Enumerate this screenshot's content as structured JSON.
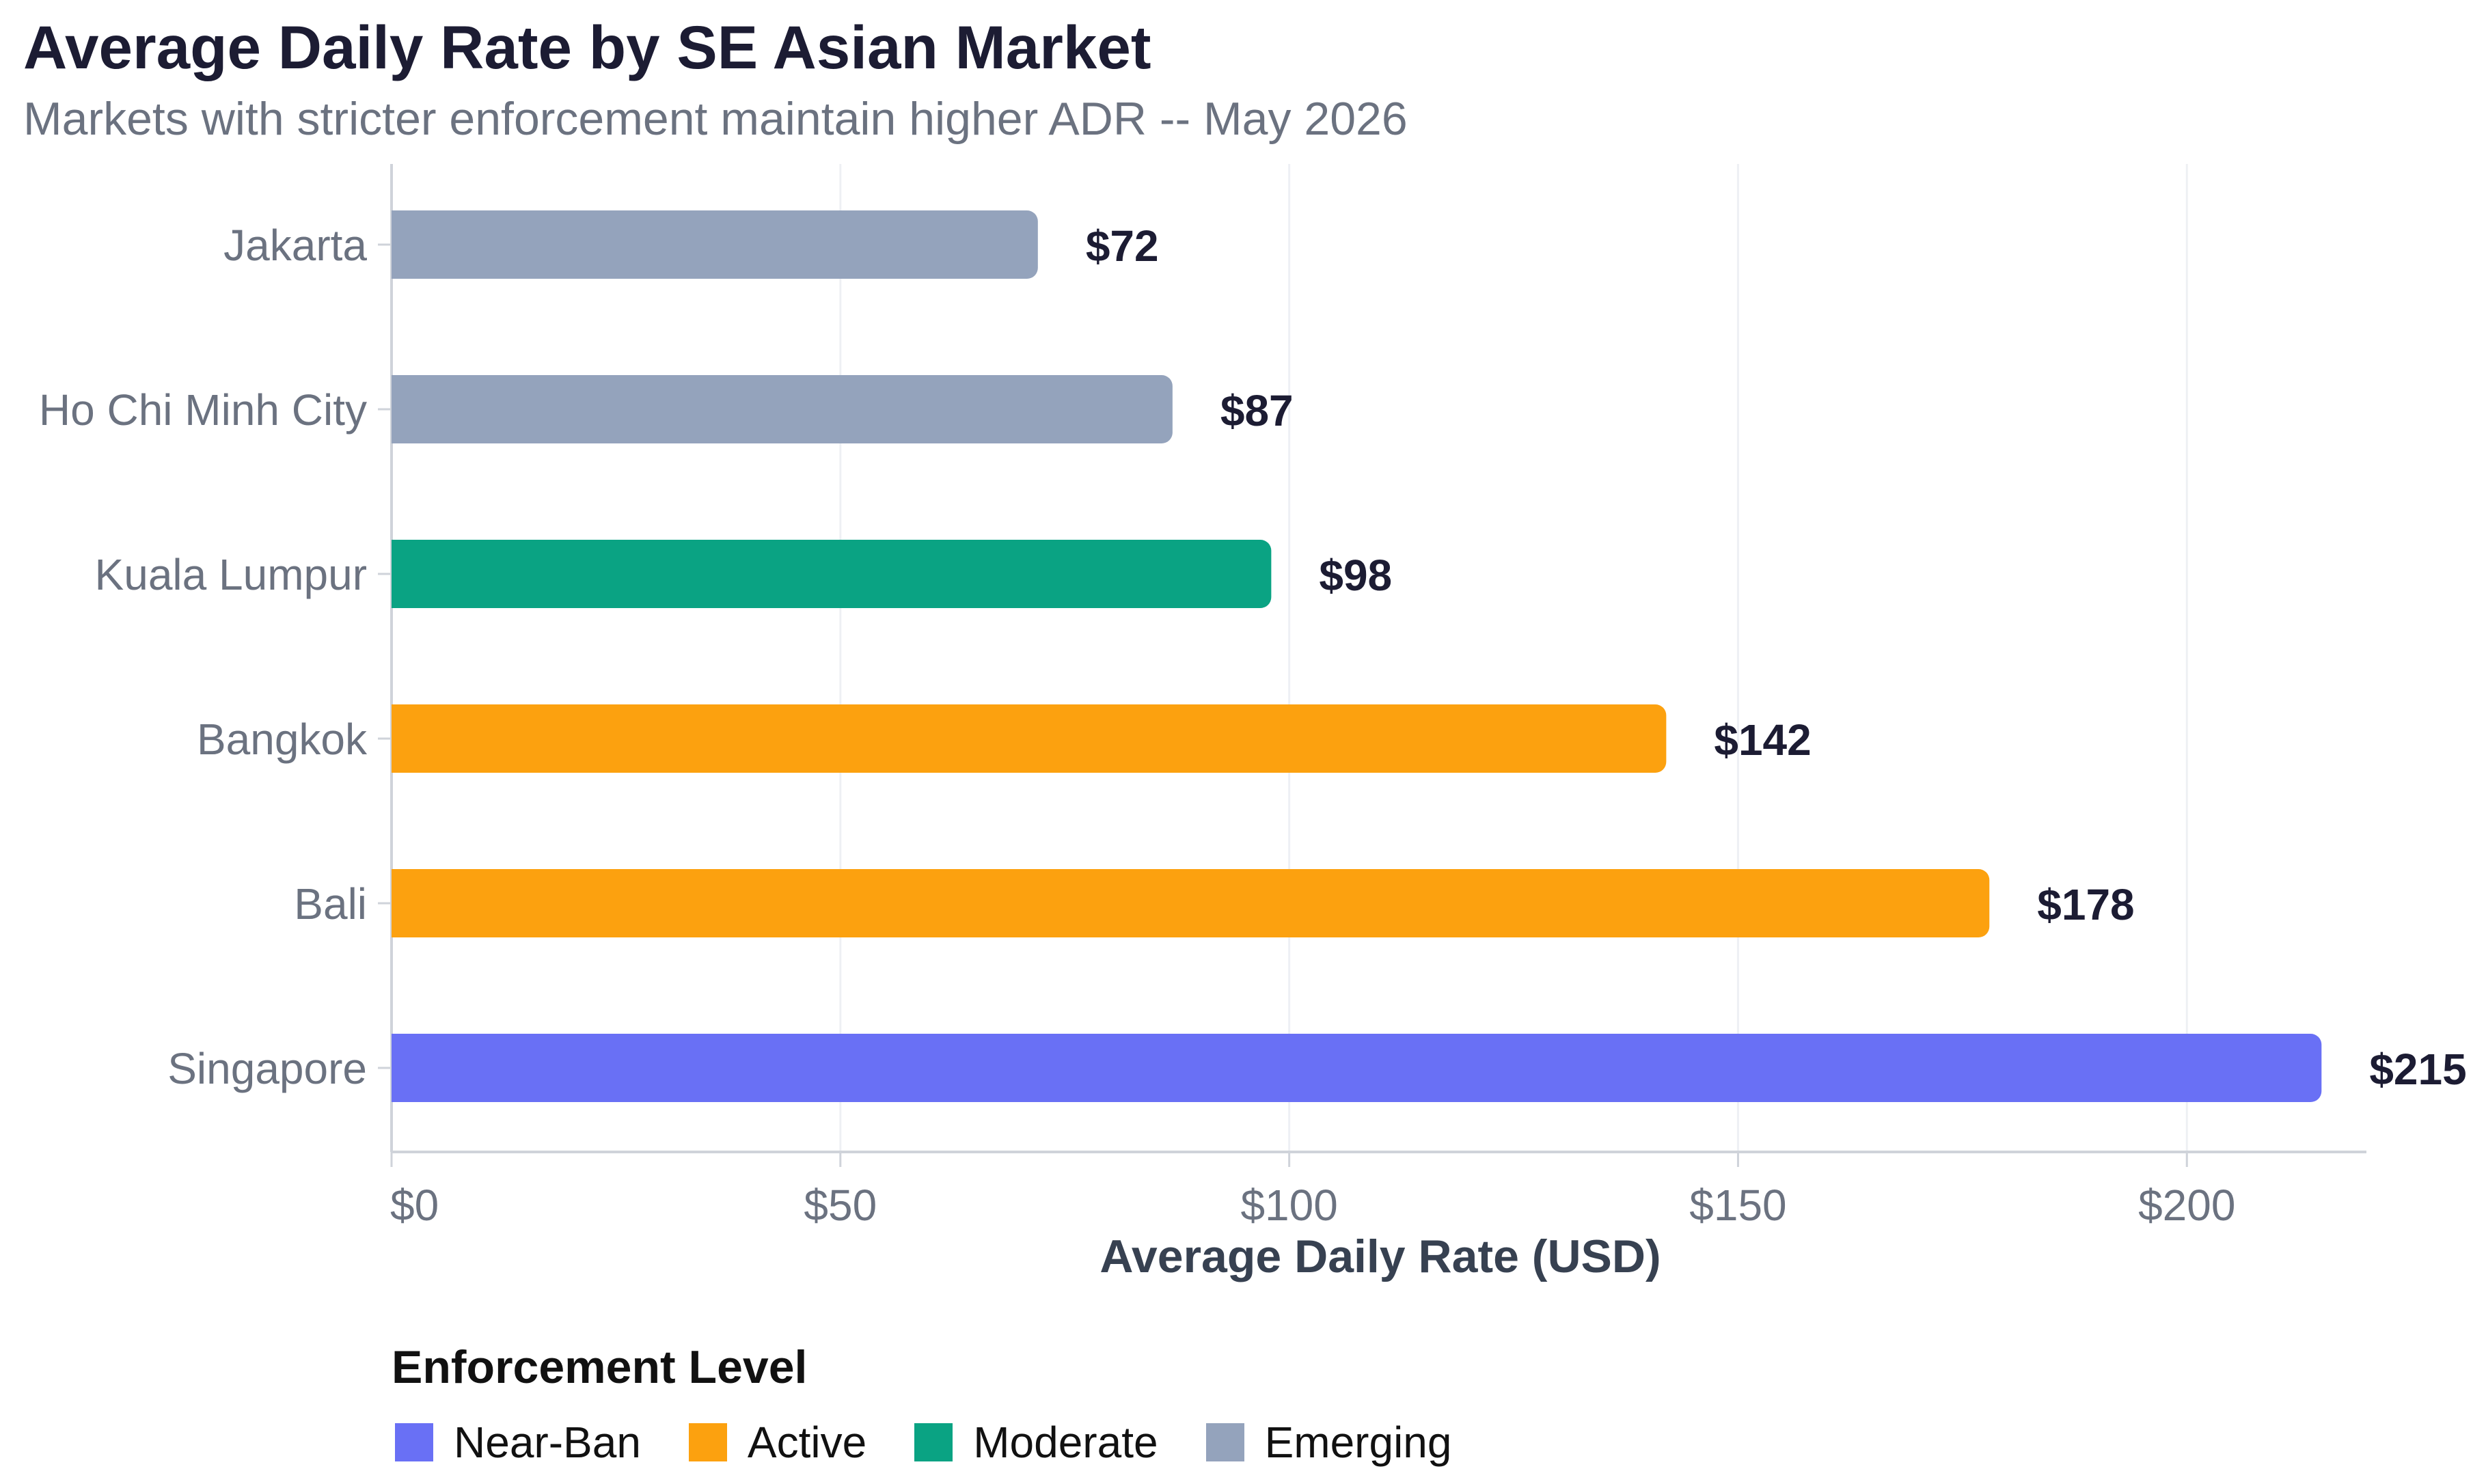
{
  "chart_data": {
    "type": "bar",
    "orientation": "horizontal",
    "title": "Average Daily Rate by SE Asian Market",
    "subtitle": "Markets with stricter enforcement maintain higher ADR -- May 2026",
    "xlabel": "Average Daily Rate (USD)",
    "ylabel": "",
    "xlim": [
      0,
      220
    ],
    "xticks": [
      0,
      50,
      100,
      150,
      200
    ],
    "xtick_labels": [
      "$0",
      "$50",
      "$100",
      "$150",
      "$200"
    ],
    "grid": "vertical",
    "categories": [
      "Jakarta",
      "Ho Chi Minh City",
      "Kuala Lumpur",
      "Bangkok",
      "Bali",
      "Singapore"
    ],
    "values": [
      72,
      87,
      98,
      142,
      178,
      215
    ],
    "value_labels": [
      "$72",
      "$87",
      "$98",
      "$142",
      "$178",
      "$215"
    ],
    "levels": [
      "Emerging",
      "Emerging",
      "Moderate",
      "Active",
      "Active",
      "Near-Ban"
    ],
    "legend": {
      "title": "Enforcement Level",
      "placement": "bottom-left",
      "items": [
        {
          "label": "Near-Ban",
          "color": "#6970f5"
        },
        {
          "label": "Active",
          "color": "#fca10f"
        },
        {
          "label": "Moderate",
          "color": "#0aa383"
        },
        {
          "label": "Emerging",
          "color": "#94a3bc"
        }
      ]
    },
    "colors": {
      "Near-Ban": "#6970f5",
      "Active": "#fca10f",
      "Moderate": "#0aa383",
      "Emerging": "#94a3bc",
      "title": "#1c1c33",
      "subtitle": "#6b7280",
      "value_label": "#1c1c33",
      "axis_label": "#374151",
      "tick_label": "#6b7280",
      "grid": "#eef0f4",
      "axis_line": "#cfd3da"
    }
  }
}
